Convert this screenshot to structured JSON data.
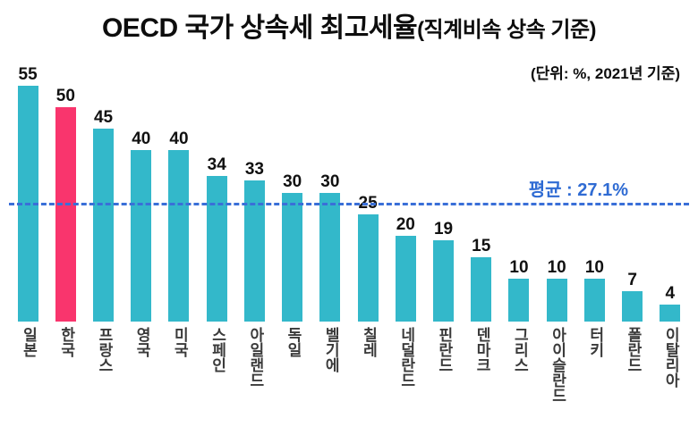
{
  "header": {
    "title_main": "OECD 국가 상속세 최고세율",
    "title_paren": "(직계비속 상속 기준)",
    "unit_note": "(단위: %, 2021년 기준)"
  },
  "average": {
    "label": "평균 : 27.1%",
    "value": 27.1
  },
  "chart_data": {
    "type": "bar",
    "title": "OECD 국가 상속세 최고세율(직계비속 상속 기준)",
    "subtitle": "(단위: %, 2021년 기준)",
    "categories": [
      "일본",
      "한국",
      "프랑스",
      "영국",
      "미국",
      "스페인",
      "아일랜드",
      "독일",
      "벨기에",
      "칠레",
      "네덜란드",
      "핀란드",
      "덴마크",
      "그리스",
      "아이슬란드",
      "터키",
      "폴란드",
      "이탈리아"
    ],
    "values": [
      55,
      50,
      45,
      40,
      40,
      34,
      33,
      30,
      30,
      25,
      20,
      19,
      15,
      10,
      10,
      10,
      7,
      4
    ],
    "highlight_index": 1,
    "highlight_category": "한국",
    "average": 27.1,
    "average_label": "평균 : 27.1%",
    "unit": "%",
    "year": "2021",
    "xlabel": "",
    "ylabel": "",
    "ylim": [
      0,
      60
    ],
    "grid": false,
    "colors": {
      "bar": "#33b8ca",
      "highlight": "#f9356d",
      "average_line": "#3a6fd8",
      "average_text": "#2f6bd3",
      "value_text": "#111111",
      "category_text": "#3a3a3a"
    }
  }
}
